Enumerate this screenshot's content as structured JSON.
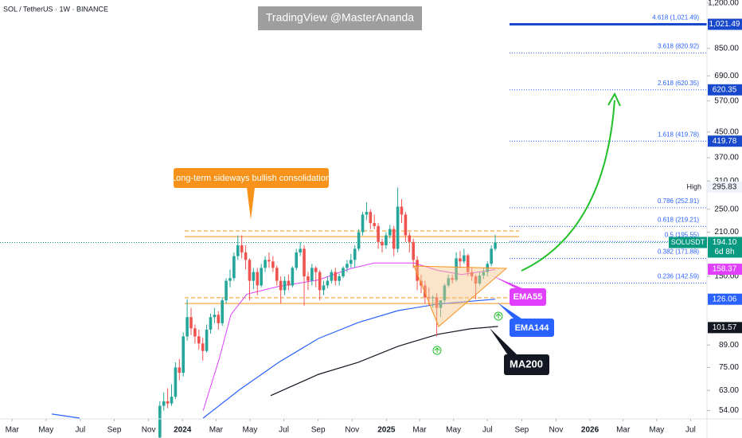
{
  "chart_data": {
    "type": "candlestick",
    "title": "SOL / TetherUS · 1W · BINANCE",
    "watermark": "TradingView @MasterAnanda",
    "annotation": "Long-term sideways bullish consolidation",
    "log_scale": true,
    "xlim": [
      5.3,
      186.6
    ],
    "ylim": [
      50.7,
      1229
    ],
    "xticks": [
      {
        "value": 8.4,
        "label": "Mar"
      },
      {
        "value": 17.1,
        "label": "May"
      },
      {
        "value": 25.9,
        "label": "Jul"
      },
      {
        "value": 34.6,
        "label": "Sep"
      },
      {
        "value": 43.4,
        "label": "Nov"
      },
      {
        "value": 52.1,
        "label": "2024"
      },
      {
        "value": 60.7,
        "label": "Mar"
      },
      {
        "value": 69.4,
        "label": "May"
      },
      {
        "value": 78.1,
        "label": "Jul"
      },
      {
        "value": 86.9,
        "label": "Sep"
      },
      {
        "value": 95.6,
        "label": "Nov"
      },
      {
        "value": 104.4,
        "label": "2025"
      },
      {
        "value": 112.9,
        "label": "Mar"
      },
      {
        "value": 121.6,
        "label": "May"
      },
      {
        "value": 130.3,
        "label": "Jul"
      },
      {
        "value": 139.1,
        "label": "Sep"
      },
      {
        "value": 147.9,
        "label": "Nov"
      },
      {
        "value": 156.6,
        "label": "2026"
      },
      {
        "value": 165.1,
        "label": "Mar"
      },
      {
        "value": 173.7,
        "label": "May"
      },
      {
        "value": 182.4,
        "label": "Jul"
      }
    ],
    "yticks": [
      {
        "value": 1200,
        "label": "1,200.00"
      },
      {
        "value": 850,
        "label": "850.00"
      },
      {
        "value": 690,
        "label": "690.00"
      },
      {
        "value": 570,
        "label": "570.00"
      },
      {
        "value": 450,
        "label": "450.00"
      },
      {
        "value": 370,
        "label": "370.00"
      },
      {
        "value": 310,
        "label": "310.00"
      },
      {
        "value": 250,
        "label": "250.00"
      },
      {
        "value": 210,
        "label": "210.00"
      },
      {
        "value": 150,
        "label": "150.00"
      },
      {
        "value": 89,
        "label": "89.00"
      },
      {
        "value": 75,
        "label": "75.00"
      },
      {
        "value": 63,
        "label": "63.00"
      },
      {
        "value": 54,
        "label": "54.00"
      }
    ],
    "up_color": "#26a69a",
    "down_color": "#ef5350",
    "candles": {
      "x": [
        46.3,
        47.3,
        48.3,
        49.3,
        50.3,
        51.3,
        52.3,
        53.3,
        54.3,
        55.3,
        56.3,
        57.3,
        58.3,
        59.3,
        60.3,
        61.3,
        62.3,
        63.3,
        64.3,
        65.3,
        66.3,
        67.3,
        68.3,
        69.3,
        70.3,
        71.3,
        72.3,
        73.3,
        74.3,
        75.3,
        76.3,
        77.3,
        78.3,
        79.3,
        80.3,
        81.3,
        82.3,
        83.3,
        84.3,
        85.3,
        86.3,
        87.3,
        88.3,
        89.3,
        90.3,
        91.3,
        92.3,
        93.3,
        94.3,
        95.3,
        96.3,
        97.3,
        98.3,
        99.3,
        100.3,
        101.3,
        102.3,
        103.3,
        104.3,
        105.3,
        106.3,
        107.3,
        108.3,
        109.3,
        110.3,
        111.3,
        112.3,
        113.3,
        114.3,
        115.3,
        116.3,
        117.3,
        118.3,
        119.3,
        120.3,
        121.3,
        122.3,
        123.3,
        124.3,
        125.3,
        126.3,
        127.3,
        128.3,
        129.3,
        130.3,
        131.3,
        132.3
      ],
      "open": [
        44,
        56,
        58,
        57,
        60,
        75,
        72,
        95,
        110,
        101,
        95,
        90,
        85,
        100,
        110,
        112,
        105,
        125,
        145,
        148,
        175,
        190,
        180,
        170,
        145,
        155,
        140,
        160,
        170,
        168,
        160,
        145,
        135,
        145,
        140,
        160,
        180,
        185,
        150,
        145,
        160,
        155,
        135,
        140,
        145,
        155,
        145,
        150,
        160,
        165,
        170,
        185,
        210,
        240,
        245,
        225,
        220,
        195,
        190,
        205,
        215,
        185,
        255,
        240,
        205,
        195,
        170,
        145,
        140,
        128,
        127,
        128,
        118,
        125,
        140,
        148,
        146,
        172,
        168,
        176,
        155,
        150,
        142,
        151,
        155,
        165,
        185
      ],
      "high": [
        58,
        62,
        64,
        66,
        78,
        80,
        98,
        126,
        118,
        104,
        100,
        94,
        104,
        113,
        118,
        115,
        128,
        148,
        158,
        180,
        205,
        205,
        190,
        172,
        160,
        160,
        165,
        175,
        180,
        175,
        163,
        150,
        150,
        152,
        162,
        185,
        195,
        190,
        155,
        165,
        162,
        157,
        145,
        150,
        158,
        160,
        153,
        162,
        170,
        178,
        190,
        215,
        245,
        264,
        250,
        240,
        225,
        200,
        210,
        222,
        220,
        295,
        270,
        245,
        210,
        200,
        175,
        152,
        145,
        138,
        130,
        132,
        125,
        142,
        152,
        152,
        180,
        182,
        185,
        178,
        160,
        152,
        155,
        160,
        168,
        190,
        206
      ],
      "low": [
        42,
        54,
        55,
        56,
        59,
        68,
        70,
        92,
        96,
        90,
        86,
        79,
        84,
        97,
        105,
        100,
        103,
        122,
        138,
        145,
        170,
        172,
        158,
        125,
        136,
        130,
        138,
        155,
        160,
        155,
        140,
        122,
        130,
        135,
        138,
        157,
        175,
        120,
        135,
        140,
        138,
        125,
        130,
        137,
        142,
        140,
        140,
        148,
        155,
        160,
        160,
        182,
        205,
        230,
        215,
        215,
        185,
        180,
        185,
        200,
        175,
        180,
        225,
        195,
        180,
        160,
        135,
        132,
        122,
        120,
        118,
        95,
        110,
        122,
        138,
        142,
        144,
        160,
        165,
        150,
        145,
        126,
        140,
        147,
        150,
        162,
        182
      ],
      "close": [
        56,
        58,
        57,
        60,
        75,
        72,
        95,
        110,
        101,
        95,
        90,
        85,
        100,
        110,
        112,
        105,
        125,
        145,
        148,
        175,
        190,
        180,
        170,
        145,
        155,
        140,
        160,
        170,
        168,
        160,
        145,
        135,
        145,
        140,
        160,
        180,
        185,
        150,
        145,
        160,
        155,
        135,
        140,
        145,
        155,
        145,
        150,
        160,
        165,
        170,
        185,
        210,
        240,
        245,
        225,
        220,
        195,
        190,
        205,
        215,
        185,
        255,
        240,
        205,
        195,
        170,
        145,
        140,
        128,
        127,
        128,
        118,
        125,
        140,
        148,
        146,
        172,
        168,
        176,
        155,
        150,
        142,
        151,
        155,
        165,
        185,
        194
      ]
    },
    "lines": [
      {
        "name": "EMA55",
        "color": "#e040fb",
        "x": [
          57.4,
          61.5,
          64.5,
          68.6,
          76.8,
          87,
          95.1,
          101.3,
          105.3,
          111.5,
          117.6,
          123.7,
          132.3
        ],
        "values": [
          54,
          80,
          112,
          131,
          139,
          146,
          159,
          166,
          166,
          166,
          157,
          152,
          158
        ]
      },
      {
        "name": "EMA144",
        "color": "#2962ff",
        "x": [
          18.6,
          25.7,
          null,
          57.4,
          66.6,
          76.8,
          87,
          97.2,
          107.4,
          117.6,
          132.3
        ],
        "values": [
          52.6,
          51,
          null,
          51,
          63.1,
          78,
          93.5,
          105.6,
          115.6,
          121.5,
          126.06
        ]
      },
      {
        "name": "MA200",
        "color": "#131722",
        "x": [
          74.7,
          87,
          97.2,
          107.4,
          117.6,
          125.9,
          133
        ],
        "values": [
          60.5,
          71.2,
          78,
          88.1,
          96.5,
          100.6,
          102.5
        ]
      }
    ],
    "range_levels": [
      212,
      203,
      127.5,
      122
    ],
    "range_color": "#f7931a",
    "fib_color": "#2962ff",
    "fib_levels": [
      {
        "label": "4.618 (1,021.49)",
        "value": 1021.49,
        "style": "solid"
      },
      {
        "label": "3.618 (820.92)",
        "value": 820.92,
        "style": "dotted"
      },
      {
        "label": "2.618 (620.35)",
        "value": 620.35,
        "style": "dotted"
      },
      {
        "label": "1.618 (419.78)",
        "value": 419.78,
        "style": "dotted"
      },
      {
        "label": "0.786 (252.91)",
        "value": 252.91,
        "style": "dotted"
      },
      {
        "label": "0.618 (219.21)",
        "value": 219.21,
        "style": "dotted"
      },
      {
        "label": "0.5 (195.55)",
        "value": 195.55,
        "style": "dotted"
      },
      {
        "label": "0.382 (171.88)",
        "value": 171.88,
        "style": "dotted"
      },
      {
        "label": "0.236 (142.59)",
        "value": 142.59,
        "style": "dotted"
      }
    ],
    "price_badges": [
      {
        "label": "1,021.49",
        "value": 1021.49,
        "color": "#1848cc"
      },
      {
        "label": "620.35",
        "value": 620.35,
        "color": "#1848cc"
      },
      {
        "label": "419.78",
        "value": 419.78,
        "color": "#1848cc"
      },
      {
        "label": "158.37",
        "value": 158.37,
        "color": "#e040fb"
      },
      {
        "label": "126.06",
        "value": 126.06,
        "color": "#2962ff"
      },
      {
        "label": "101.57",
        "value": 101.57,
        "color": "#131722"
      }
    ],
    "high_label": "High",
    "high": {
      "label": "295.83",
      "value": 295.83
    },
    "last_price": {
      "symbol": "SOLUSDT",
      "label": "194.10",
      "value": 194.1,
      "countdown": "6d 8h",
      "color": "#089981"
    }
  }
}
